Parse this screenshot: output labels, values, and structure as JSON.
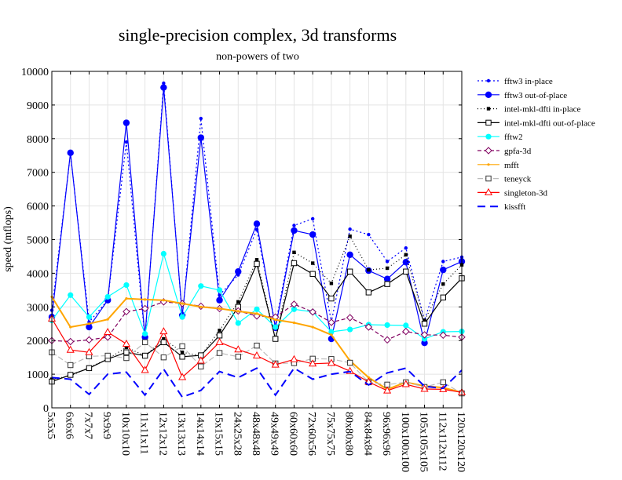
{
  "chart_data": {
    "type": "line",
    "title": "single-precision complex, 3d transforms",
    "subtitle": "non-powers of two",
    "xlabel": "",
    "ylabel": "speed (mflops)",
    "ylim": [
      0,
      10000
    ],
    "y_ticks": [
      "0",
      "1000",
      "2000",
      "3000",
      "4000",
      "5000",
      "6000",
      "7000",
      "8000",
      "9000",
      "10000"
    ],
    "grid": true,
    "legend_position": "top-right",
    "categories": [
      "5x5x5",
      "6x6x6",
      "7x7x7",
      "9x9x9",
      "10x10x10",
      "11x11x11",
      "12x12x12",
      "13x13x13",
      "14x14x14",
      "15x15x15",
      "24x25x28",
      "48x48x48",
      "49x49x49",
      "60x60x60",
      "72x60x56",
      "75x75x75",
      "80x80x80",
      "84x84x84",
      "96x96x96",
      "100x100x100",
      "105x105x105",
      "112x112x112",
      "120x120x120"
    ],
    "series": [
      {
        "name": "fftw3 in-place",
        "color": "#0000ff",
        "dash": "2,3",
        "marker": "dot-small",
        "values": [
          2900,
          7550,
          2550,
          3200,
          7900,
          2050,
          9650,
          2700,
          8600,
          3350,
          3950,
          5300,
          2450,
          5420,
          5620,
          2550,
          5310,
          5150,
          4350,
          4750,
          2600,
          4350,
          4480
        ]
      },
      {
        "name": "fftw3 out-of-place",
        "color": "#0000ff",
        "dash": "",
        "marker": "dot-large",
        "values": [
          2700,
          7580,
          2400,
          3200,
          8470,
          2100,
          9520,
          2750,
          8030,
          3200,
          4050,
          5470,
          2380,
          5270,
          5150,
          2050,
          4550,
          4080,
          3830,
          4330,
          1930,
          4100,
          4350
        ]
      },
      {
        "name": "intel-mkl-dfti in-place",
        "color": "#000000",
        "dash": "1,3",
        "marker": "square-filled",
        "values": [
          850,
          950,
          1200,
          1450,
          1800,
          1550,
          2050,
          1650,
          1550,
          2300,
          3150,
          4400,
          2050,
          4620,
          4300,
          3700,
          5100,
          4100,
          4150,
          4550,
          2600,
          3680,
          4250
        ]
      },
      {
        "name": "intel-mkl-dfti out-of-place",
        "color": "#000000",
        "dash": "",
        "marker": "square-open",
        "values": [
          780,
          980,
          1180,
          1450,
          1650,
          1550,
          1950,
          1520,
          1560,
          2150,
          3000,
          4280,
          2050,
          4300,
          3980,
          3250,
          4050,
          3430,
          3680,
          4050,
          2500,
          3280,
          3850
        ]
      },
      {
        "name": "fftw2",
        "color": "#00ffff",
        "dash": "",
        "marker": "dot-cyan",
        "values": [
          2600,
          3350,
          2700,
          3300,
          3650,
          2200,
          4580,
          2700,
          3620,
          3500,
          2520,
          2930,
          2400,
          2930,
          2850,
          2260,
          2330,
          2470,
          2460,
          2450,
          2050,
          2260,
          2270
        ]
      },
      {
        "name": "gpfa-3d",
        "color": "#800060",
        "dash": "5,3",
        "marker": "diamond-open",
        "values": [
          2000,
          1970,
          2020,
          2100,
          2860,
          2950,
          3150,
          3100,
          3020,
          2950,
          2880,
          2730,
          2700,
          3080,
          2850,
          2540,
          2680,
          2400,
          2020,
          2270,
          2170,
          2160,
          2100
        ]
      },
      {
        "name": "mfft",
        "color": "#ffa500",
        "dash": "",
        "marker": "dot-orange",
        "values": [
          3300,
          2400,
          2500,
          2630,
          3250,
          3220,
          3200,
          3100,
          3000,
          2950,
          2870,
          2800,
          2620,
          2530,
          2400,
          2170,
          1400,
          900,
          550,
          760,
          650,
          600,
          460
        ]
      },
      {
        "name": "teneyck",
        "color": "#bbbbbb",
        "dash": "7,3",
        "marker": "square-gray",
        "values": [
          1650,
          1270,
          1530,
          1550,
          1480,
          1950,
          1500,
          1830,
          1230,
          1630,
          1520,
          1850,
          1320,
          1330,
          1460,
          1450,
          1340,
          760,
          690,
          760,
          620,
          760,
          430
        ]
      },
      {
        "name": "singleton-3d",
        "color": "#ff0000",
        "dash": "",
        "marker": "triangle-open",
        "values": [
          2650,
          1720,
          1650,
          2250,
          1900,
          1120,
          2270,
          910,
          1400,
          1950,
          1730,
          1550,
          1280,
          1440,
          1310,
          1330,
          1090,
          770,
          510,
          700,
          560,
          550,
          460
        ]
      },
      {
        "name": "kissfft",
        "color": "#0000ff",
        "dash": "10,6",
        "marker": "none",
        "values": [
          900,
          850,
          400,
          1000,
          1060,
          380,
          1150,
          320,
          520,
          1080,
          900,
          1180,
          380,
          1180,
          850,
          1000,
          1080,
          680,
          1040,
          1180,
          640,
          580,
          1120
        ]
      }
    ]
  }
}
